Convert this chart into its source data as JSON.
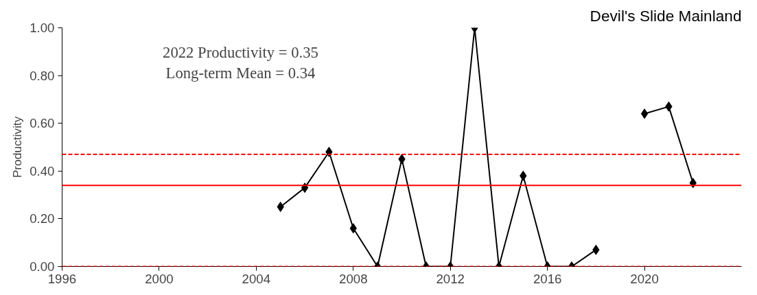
{
  "chart_data": {
    "type": "line",
    "title": "Devil's Slide Mainland",
    "ylabel": "Productivity",
    "annotations": [
      "2022 Productivity = 0.35",
      "Long-term Mean = 0.34"
    ],
    "x": [
      2005,
      2006,
      2007,
      2008,
      2009,
      2010,
      2011,
      2012,
      2013,
      2014,
      2015,
      2016,
      2017,
      2018,
      2019,
      2020,
      2021,
      2022
    ],
    "series": [
      {
        "color": "#000000",
        "values": [
          0.25,
          0.33,
          0.48,
          0.16,
          0,
          0.45,
          0,
          0,
          1.0,
          0,
          0.38,
          0,
          0,
          0.07,
          null,
          0.64,
          0.67,
          0.35
        ]
      }
    ],
    "marker": "diamond",
    "line_style": "solid",
    "xlim": [
      1996,
      2024
    ],
    "xticks": [
      1996,
      2000,
      2004,
      2008,
      2012,
      2016,
      2020
    ],
    "ylim": [
      0,
      1
    ],
    "yticks": [
      {
        "value": 0,
        "label": "0.00"
      },
      {
        "value": 0.2,
        "label": "0.20"
      },
      {
        "value": 0.4,
        "label": "0.40"
      },
      {
        "value": 0.6,
        "label": "0.60"
      },
      {
        "value": 0.8,
        "label": "0.80"
      },
      {
        "value": 1.0,
        "label": "1.00"
      }
    ],
    "ref_lines": [
      {
        "axis": "y",
        "value": 0.34,
        "color": "#ff0000",
        "line_style": "solid"
      },
      {
        "axis": "y",
        "value": 0.47,
        "color": "#ff0000",
        "line_style": "dashed"
      },
      {
        "axis": "y",
        "value": 0,
        "color": "#ff0000",
        "line_style": "dashed"
      }
    ],
    "grid": false
  }
}
